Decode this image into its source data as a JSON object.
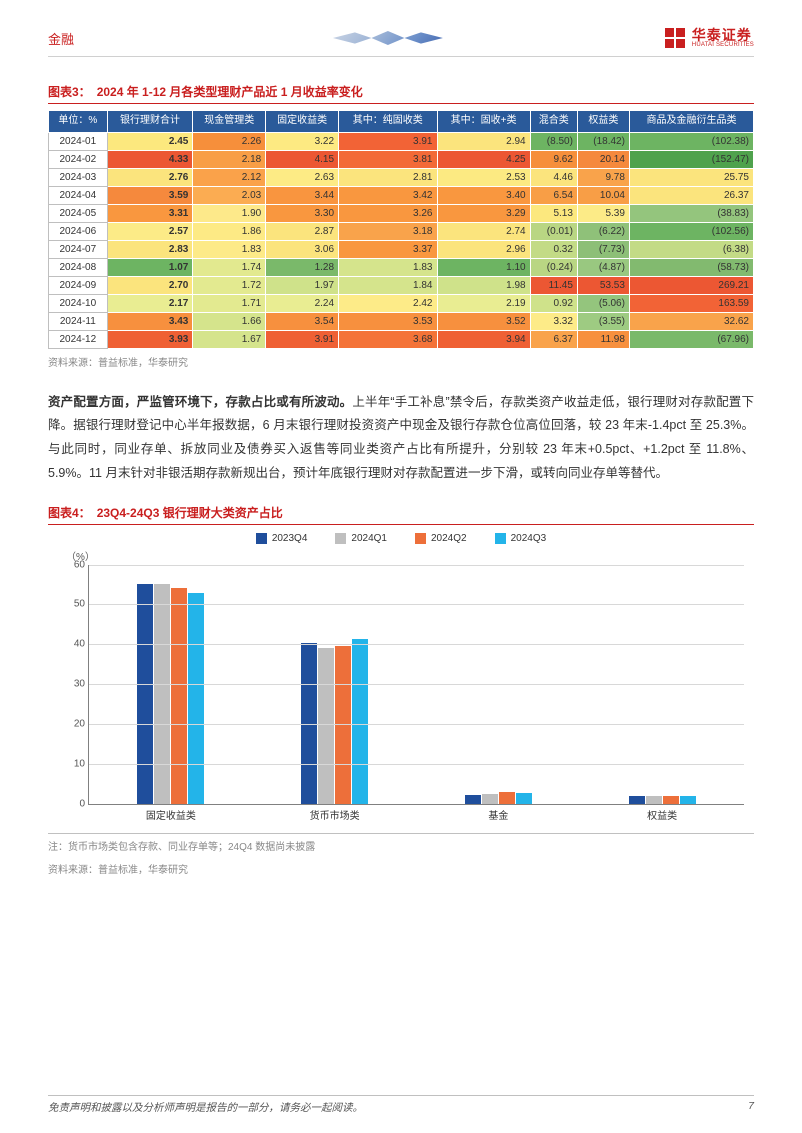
{
  "header": {
    "category": "金融",
    "logo_cn": "华泰证券",
    "logo_en": "HUATAI SECURITIES"
  },
  "fig3": {
    "label": "图表3：",
    "title": "2024 年 1-12 月各类型理财产品近 1 月收益率变化",
    "unit_header": "单位：%",
    "columns": [
      "银行理财合计",
      "现金管理类",
      "固定收益类",
      "其中：纯固收类",
      "其中：固收+类",
      "混合类",
      "权益类",
      "商品及金融衍生品类"
    ],
    "rows": [
      {
        "period": "2024-01",
        "vals": [
          "2.45",
          "2.26",
          "3.22",
          "3.91",
          "2.94",
          "(8.50)",
          "(18.42)",
          "(102.38)"
        ],
        "colors": [
          "#fce87e",
          "#f68f3b",
          "#fdea82",
          "#f26336",
          "#fbe47d",
          "#6db462",
          "#6db462",
          "#6db462"
        ]
      },
      {
        "period": "2024-02",
        "vals": [
          "4.33",
          "2.18",
          "4.15",
          "3.81",
          "4.25",
          "9.62",
          "20.14",
          "(152.47)"
        ],
        "colors": [
          "#ec5733",
          "#f89e46",
          "#ec5733",
          "#f36a37",
          "#ec5733",
          "#f68f3b",
          "#f5893d",
          "#4fa24d"
        ]
      },
      {
        "period": "2024-03",
        "vals": [
          "2.76",
          "2.12",
          "2.63",
          "2.81",
          "2.53",
          "4.46",
          "9.78",
          "25.75"
        ],
        "colors": [
          "#fbe47d",
          "#faa24a",
          "#fdeb85",
          "#fbe47d",
          "#fcea82",
          "#fbe47d",
          "#f9a34b",
          "#fbe47d"
        ]
      },
      {
        "period": "2024-04",
        "vals": [
          "3.59",
          "2.03",
          "3.44",
          "3.42",
          "3.40",
          "6.54",
          "10.04",
          "26.37"
        ],
        "colors": [
          "#f5893d",
          "#fbac52",
          "#f9953f",
          "#f9973f",
          "#f9973f",
          "#f89e46",
          "#f89e46",
          "#fbe47d"
        ]
      },
      {
        "period": "2024-05",
        "vals": [
          "3.31",
          "1.90",
          "3.30",
          "3.26",
          "3.29",
          "5.13",
          "5.39",
          "(38.83)"
        ],
        "colors": [
          "#f9973f",
          "#fde98a",
          "#f9973f",
          "#f9973f",
          "#f9973f",
          "#fce87e",
          "#fceb87",
          "#94c57d"
        ]
      },
      {
        "period": "2024-06",
        "vals": [
          "2.57",
          "1.86",
          "2.87",
          "3.18",
          "2.74",
          "(0.01)",
          "(6.22)",
          "(102.56)"
        ],
        "colors": [
          "#fceb87",
          "#fdea85",
          "#fbe47d",
          "#f9a34b",
          "#fbe47d",
          "#b9d683",
          "#8fc179",
          "#6db462"
        ]
      },
      {
        "period": "2024-07",
        "vals": [
          "2.83",
          "1.83",
          "3.06",
          "3.37",
          "2.96",
          "0.32",
          "(7.73)",
          "(6.38)"
        ],
        "colors": [
          "#fbe47d",
          "#fdea88",
          "#fbe47d",
          "#f9973f",
          "#fbe47d",
          "#c3db86",
          "#8dbf77",
          "#c3db86"
        ]
      },
      {
        "period": "2024-08",
        "vals": [
          "1.07",
          "1.74",
          "1.28",
          "1.83",
          "1.10",
          "(0.24)",
          "(4.87)",
          "(58.73)"
        ],
        "colors": [
          "#6db462",
          "#e2e98f",
          "#7ab96a",
          "#d5e48c",
          "#6db462",
          "#b9d683",
          "#99c880",
          "#82ba6f"
        ]
      },
      {
        "period": "2024-09",
        "vals": [
          "2.70",
          "1.72",
          "1.97",
          "1.84",
          "1.98",
          "11.45",
          "53.53",
          "269.21"
        ],
        "colors": [
          "#fbe47d",
          "#e3ea90",
          "#cfe28a",
          "#d5e48c",
          "#cfe28a",
          "#ec5733",
          "#ec5733",
          "#ec5733"
        ]
      },
      {
        "period": "2024-10",
        "vals": [
          "2.17",
          "1.71",
          "2.24",
          "2.42",
          "2.19",
          "0.92",
          "(5.06)",
          "163.59"
        ],
        "colors": [
          "#e9ed92",
          "#e3ea90",
          "#e9ed92",
          "#fdeb88",
          "#e9ed92",
          "#cfe28a",
          "#94c57d",
          "#f26336"
        ]
      },
      {
        "period": "2024-11",
        "vals": [
          "3.43",
          "1.66",
          "3.54",
          "3.53",
          "3.52",
          "3.32",
          "(3.55)",
          "32.62"
        ],
        "colors": [
          "#f7903e",
          "#d5e48c",
          "#f7903e",
          "#f7903e",
          "#f7903e",
          "#fdeb88",
          "#9ecb82",
          "#f9a34b"
        ]
      },
      {
        "period": "2024-12",
        "vals": [
          "3.93",
          "1.67",
          "3.91",
          "3.68",
          "3.94",
          "6.37",
          "11.98",
          "(67.96)"
        ],
        "colors": [
          "#ef6034",
          "#d5e48c",
          "#ef6034",
          "#f47338",
          "#ef6034",
          "#f9a34b",
          "#f7903e",
          "#7ab96a"
        ]
      }
    ],
    "source": "资料来源：普益标准，华泰研究"
  },
  "paragraph": {
    "lead": "资产配置方面，严监管环境下，存款占比或有所波动。",
    "text": "上半年“手工补息”禁令后，存款类资产收益走低，银行理财对存款配置下降。据银行理财登记中心半年报数据，6 月末银行理财投资资产中现金及银行存款仓位高位回落，较 23 年末-1.4pct 至 25.3%。与此同时，同业存单、拆放同业及债券买入返售等同业类资产占比有所提升，分别较 23 年末+0.5pct、+1.2pct 至 11.8%、5.9%。11 月末针对非银活期存款新规出台，预计年底银行理财对存款配置进一步下滑，或转向同业存单等替代。"
  },
  "fig4": {
    "label": "图表4：",
    "title": "23Q4-24Q3 银行理财大类资产占比",
    "ylabel": "（%）",
    "yticks": [
      0,
      10,
      20,
      30,
      40,
      50,
      60
    ],
    "ymax": 60,
    "legend": [
      {
        "name": "2023Q4",
        "color": "#1f4e9c"
      },
      {
        "name": "2024Q1",
        "color": "#bfbfbf"
      },
      {
        "name": "2024Q2",
        "color": "#ed6f3a"
      },
      {
        "name": "2024Q3",
        "color": "#23b4e9"
      }
    ],
    "categories": [
      "固定收益类",
      "货币市场类",
      "基金",
      "权益类"
    ],
    "series": {
      "2023Q4": [
        55.2,
        40.3,
        2.2,
        2.0
      ],
      "2024Q1": [
        55.0,
        39.0,
        2.5,
        2.0
      ],
      "2024Q2": [
        54.2,
        39.6,
        2.8,
        2.0
      ],
      "2024Q3": [
        52.8,
        41.3,
        2.6,
        2.0
      ]
    },
    "note": "注：货币市场类包含存款、同业存单等；24Q4 数据尚未披露",
    "source": "资料来源：普益标准，华泰研究"
  },
  "footer": {
    "disclaimer": "免责声明和披露以及分析师声明是报告的一部分，请务必一起阅读。",
    "page": "7"
  }
}
